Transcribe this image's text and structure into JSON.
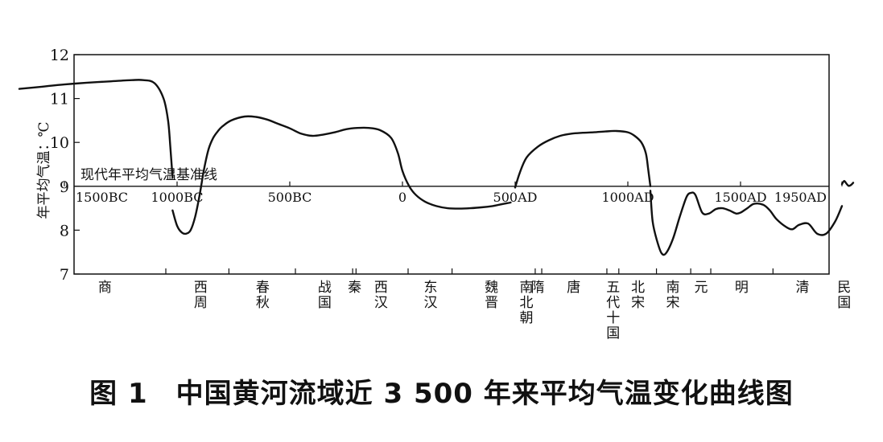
{
  "chart_data": {
    "type": "line",
    "title": "图 1　中国黄河流域近 3 500 年来平均气温变化曲线图",
    "ylabel": "年平均气温：℃",
    "ylim": [
      7,
      12
    ],
    "yticks": [
      7,
      8,
      9,
      10,
      11,
      12
    ],
    "xlim": [
      -1700,
      2000
    ],
    "grid": false,
    "baseline": {
      "y": 9,
      "label": "现代年平均气温基准线"
    },
    "xticks": [
      {
        "x": -1500,
        "label": "1500BC"
      },
      {
        "x": -1000,
        "label": "1000BC"
      },
      {
        "x": -500,
        "label": "500BC"
      },
      {
        "x": 0,
        "label": "0"
      },
      {
        "x": 500,
        "label": "500AD"
      },
      {
        "x": 1000,
        "label": "1000AD"
      },
      {
        "x": 1500,
        "label": "1500AD"
      },
      {
        "x": 1950,
        "label": "1950AD"
      }
    ],
    "series": [
      {
        "x": [
          -1700,
          -1600,
          -1500,
          -1400,
          -1300,
          -1200,
          -1150,
          -1100,
          -1060,
          -1040,
          -1030,
          -1020
        ],
        "y": [
          11.22,
          11.27,
          11.32,
          11.36,
          11.39,
          11.42,
          11.42,
          11.35,
          11.0,
          10.5,
          9.9,
          9.2
        ]
      },
      {
        "x": [
          -1020,
          -1000,
          -980,
          -960,
          -940,
          -920,
          -900,
          -880,
          -860,
          -840,
          -820,
          -800,
          -760,
          -700,
          -650,
          -600,
          -550,
          -500,
          -450,
          -400,
          -350,
          -300,
          -250,
          -200,
          -150,
          -100,
          -50,
          -20,
          0,
          30,
          60,
          100,
          150,
          200,
          250,
          300,
          350,
          400,
          450,
          480
        ],
        "y": [
          8.45,
          8.1,
          7.95,
          7.92,
          8.0,
          8.3,
          8.8,
          9.4,
          9.85,
          10.1,
          10.25,
          10.36,
          10.5,
          10.59,
          10.58,
          10.52,
          10.42,
          10.32,
          10.2,
          10.15,
          10.18,
          10.23,
          10.3,
          10.33,
          10.33,
          10.28,
          10.1,
          9.75,
          9.35,
          9.0,
          8.8,
          8.65,
          8.55,
          8.5,
          8.49,
          8.5,
          8.52,
          8.55,
          8.6,
          8.63
        ]
      },
      {
        "x": [
          500,
          520,
          550,
          600,
          650,
          700,
          750,
          800,
          850,
          900,
          950,
          1000,
          1030,
          1060,
          1080,
          1090,
          1100
        ],
        "y": [
          8.97,
          9.3,
          9.65,
          9.9,
          10.05,
          10.15,
          10.2,
          10.22,
          10.23,
          10.25,
          10.26,
          10.23,
          10.15,
          10.0,
          9.75,
          9.4,
          9.0
        ]
      },
      {
        "x": [
          1100,
          1110,
          1130,
          1150,
          1170,
          1200,
          1230,
          1260,
          1280,
          1300,
          1330,
          1360,
          1390,
          1420,
          1450,
          1480,
          1500,
          1530,
          1560,
          1600,
          1630,
          1660,
          1700,
          1730,
          1760,
          1800,
          1840,
          1880,
          1920,
          1950
        ],
        "y": [
          8.9,
          8.2,
          7.75,
          7.47,
          7.48,
          7.8,
          8.3,
          8.75,
          8.85,
          8.8,
          8.4,
          8.38,
          8.48,
          8.5,
          8.45,
          8.38,
          8.4,
          8.5,
          8.6,
          8.58,
          8.45,
          8.25,
          8.08,
          8.02,
          8.12,
          8.15,
          7.92,
          7.92,
          8.2,
          8.55
        ]
      },
      {
        "x": [
          1950,
          1960,
          1970,
          1980,
          1990,
          2000
        ],
        "y": [
          9.05,
          9.12,
          9.06,
          9.01,
          9.03,
          9.08
        ]
      }
    ],
    "dynasty_dividers": [
      -1050,
      -770,
      -475,
      -221,
      -206,
      25,
      220,
      589,
      618,
      907,
      960,
      1127,
      1279,
      1368,
      1644,
      1911
    ],
    "dynasties": [
      {
        "x": -1320,
        "label": "商"
      },
      {
        "x": -895,
        "label": "西周"
      },
      {
        "x": -620,
        "label": "春秋"
      },
      {
        "x": -345,
        "label": "战国"
      },
      {
        "x": -212,
        "label": "秦"
      },
      {
        "x": -95,
        "label": "西汉"
      },
      {
        "x": 125,
        "label": "东汉"
      },
      {
        "x": 395,
        "label": "魏晋"
      },
      {
        "x": 550,
        "label": "南北朝"
      },
      {
        "x": 600,
        "label": "隋"
      },
      {
        "x": 760,
        "label": "唐"
      },
      {
        "x": 935,
        "label": "五代十国"
      },
      {
        "x": 1045,
        "label": "北宋"
      },
      {
        "x": 1200,
        "label": "南宋"
      },
      {
        "x": 1325,
        "label": "元"
      },
      {
        "x": 1505,
        "label": "明"
      },
      {
        "x": 1775,
        "label": "清"
      },
      {
        "x": 1960,
        "label": "民国"
      }
    ]
  }
}
